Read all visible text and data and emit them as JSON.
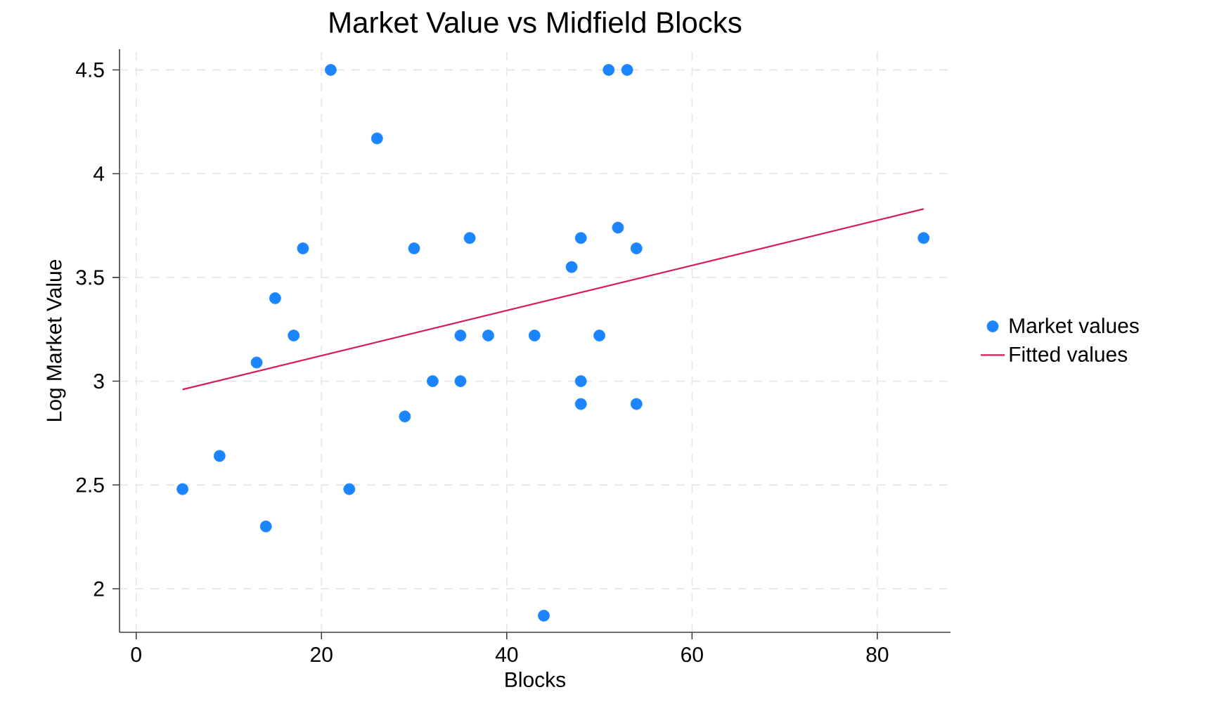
{
  "chart_data": {
    "type": "scatter",
    "title": "Market Value vs Midfield Blocks",
    "xlabel": "Blocks",
    "ylabel": "Log Market Value",
    "xlim": [
      -1.8,
      87.9
    ],
    "ylim": [
      1.79,
      4.6
    ],
    "xticks": [
      0,
      20,
      40,
      60,
      80
    ],
    "yticks": [
      2,
      2.5,
      3,
      3.5,
      4,
      4.5
    ],
    "grid": true,
    "legend": "right",
    "series": [
      {
        "name": "Market values",
        "marker": "circle",
        "color": "#1a85ff",
        "x": [
          5,
          9,
          14,
          13,
          15,
          17,
          18,
          21,
          23,
          26,
          29,
          30,
          32,
          35,
          35,
          36,
          38,
          43,
          50,
          47,
          48,
          52,
          54,
          51,
          53,
          48,
          48,
          54,
          44,
          85
        ],
        "values": [
          2.48,
          2.64,
          2.3,
          3.09,
          3.4,
          3.22,
          3.64,
          4.5,
          2.48,
          4.17,
          2.83,
          3.64,
          3.0,
          3.0,
          3.22,
          3.69,
          3.22,
          3.22,
          3.22,
          3.55,
          3.69,
          3.74,
          3.64,
          4.5,
          4.5,
          3.0,
          2.89,
          2.89,
          1.87,
          3.69
        ]
      },
      {
        "name": "Fitted values",
        "type": "line",
        "marker": "none",
        "color": "#d81b60",
        "x": [
          5,
          85
        ],
        "values": [
          2.96,
          3.83
        ]
      }
    ]
  }
}
